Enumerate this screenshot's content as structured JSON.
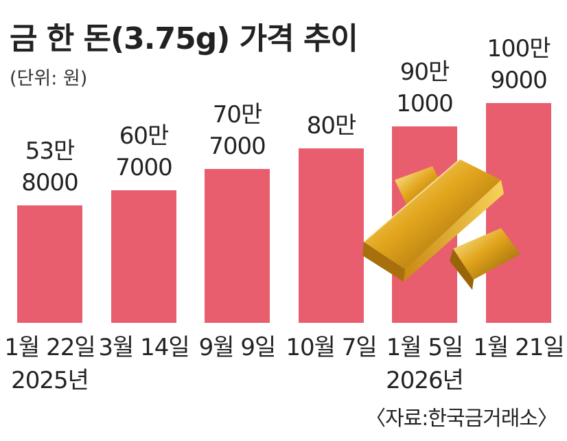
{
  "chart_data": {
    "type": "bar",
    "title": "금 한 돈(3.75g) 가격 추이",
    "unit_note": "(단위: 원)",
    "source": "〈자료:한국금거래소〉",
    "categories": [
      [
        "1월 22일",
        "2025년"
      ],
      [
        "3월 14일"
      ],
      [
        "9월 9일"
      ],
      [
        "10월 7일"
      ],
      [
        "1월 5일",
        "2026년"
      ],
      [
        "1월 21일"
      ]
    ],
    "values": [
      538000,
      607000,
      707000,
      800000,
      901000,
      1009000
    ],
    "value_labels": [
      [
        "53만",
        "8000"
      ],
      [
        "60만",
        "7000"
      ],
      [
        "70만",
        "7000"
      ],
      [
        "80만"
      ],
      [
        "90만",
        "1000"
      ],
      [
        "100만",
        "9000"
      ]
    ],
    "colors": {
      "bar": "#e85e6e"
    },
    "decoration": "gold-bars-image"
  }
}
